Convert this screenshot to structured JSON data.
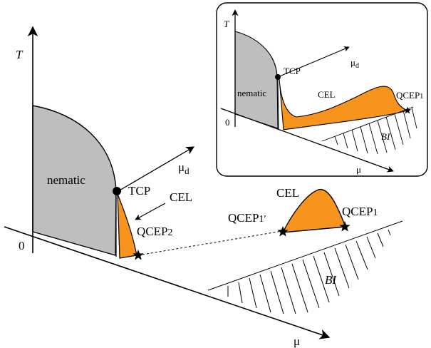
{
  "colors": {
    "nematic": "#bdbec0",
    "cel": "#f7941d",
    "ink": "#000000",
    "inset_border": "#000000"
  },
  "main": {
    "axis_t": "T",
    "axis_mu": "μ",
    "axis_mud": "μ",
    "axis_mud_sub": "d",
    "origin": "0",
    "nematic": "nematic",
    "tcp": "TCP",
    "cel_left": "CEL",
    "cel_right": "CEL",
    "qcep2": "QCEP",
    "qcep2_sub": "2",
    "qcep1": "QCEP",
    "qcep1_sub": "1",
    "qcep1p": "QCEP",
    "qcep1p_sub": "1′",
    "bi": "BI"
  },
  "inset": {
    "axis_t": "T",
    "axis_mu": "μ",
    "axis_mud": "μ",
    "axis_mud_sub": "d",
    "origin": "0",
    "nematic": "nematic",
    "tcp": "TCP",
    "cel": "CEL",
    "qcep1": "QCEP",
    "qcep1_sub": "1",
    "bi": "BI"
  }
}
